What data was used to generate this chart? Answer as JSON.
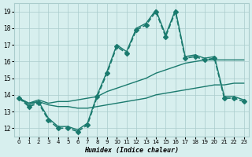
{
  "xlabel": "Humidex (Indice chaleur)",
  "ylabel": "",
  "xlim": [
    -0.5,
    23.5
  ],
  "ylim": [
    11.5,
    19.5
  ],
  "yticks": [
    12,
    13,
    14,
    15,
    16,
    17,
    18,
    19
  ],
  "xticks": [
    0,
    1,
    2,
    3,
    4,
    5,
    6,
    7,
    8,
    9,
    10,
    11,
    12,
    13,
    14,
    15,
    16,
    17,
    18,
    19,
    20,
    21,
    22,
    23
  ],
  "bg_color": "#d7efee",
  "grid_color": "#aacccc",
  "line_color": "#1a7a6e",
  "series": [
    {
      "x": [
        0,
        1,
        2,
        3,
        4,
        5,
        6,
        7,
        8,
        9,
        10,
        11,
        12,
        13,
        14,
        15,
        16,
        17,
        18,
        19,
        20,
        21,
        22,
        23
      ],
      "y": [
        13.8,
        13.3,
        13.5,
        12.5,
        12.0,
        12.0,
        11.8,
        12.2,
        13.9,
        15.3,
        16.9,
        16.5,
        17.9,
        18.2,
        19.0,
        17.5,
        19.0,
        16.2,
        16.3,
        16.1,
        16.2,
        13.8,
        13.8,
        13.6
      ],
      "marker": "D",
      "markersize": 3,
      "linewidth": 1.2,
      "linestyle": "--"
    },
    {
      "x": [
        0,
        1,
        2,
        3,
        4,
        5,
        6,
        7,
        8,
        9,
        10,
        11,
        12,
        13,
        14,
        15,
        16,
        17,
        18,
        19,
        20,
        21,
        22,
        23
      ],
      "y": [
        13.8,
        13.4,
        13.6,
        12.6,
        12.1,
        12.1,
        11.9,
        12.3,
        14.0,
        15.4,
        17.0,
        16.6,
        18.0,
        18.3,
        19.1,
        17.6,
        19.1,
        16.3,
        16.4,
        16.2,
        16.3,
        13.9,
        13.9,
        13.7
      ],
      "marker": null,
      "markersize": 0,
      "linewidth": 1.0,
      "linestyle": "-"
    },
    {
      "x": [
        0,
        1,
        2,
        3,
        4,
        5,
        6,
        7,
        8,
        9,
        10,
        11,
        12,
        13,
        14,
        15,
        16,
        17,
        18,
        19,
        20,
        21,
        22,
        23
      ],
      "y": [
        13.8,
        13.5,
        13.7,
        13.5,
        13.6,
        13.6,
        13.7,
        13.8,
        13.9,
        14.2,
        14.4,
        14.6,
        14.8,
        15.0,
        15.3,
        15.5,
        15.7,
        15.9,
        16.0,
        16.1,
        16.1,
        16.1,
        16.1,
        16.1
      ],
      "marker": null,
      "markersize": 0,
      "linewidth": 1.0,
      "linestyle": "-"
    },
    {
      "x": [
        0,
        1,
        2,
        3,
        4,
        5,
        6,
        7,
        8,
        9,
        10,
        11,
        12,
        13,
        14,
        15,
        16,
        17,
        18,
        19,
        20,
        21,
        22,
        23
      ],
      "y": [
        13.8,
        13.5,
        13.6,
        13.4,
        13.3,
        13.3,
        13.2,
        13.2,
        13.3,
        13.4,
        13.5,
        13.6,
        13.7,
        13.8,
        14.0,
        14.1,
        14.2,
        14.3,
        14.4,
        14.5,
        14.6,
        14.6,
        14.7,
        14.7
      ],
      "marker": null,
      "markersize": 0,
      "linewidth": 1.0,
      "linestyle": "-"
    }
  ]
}
